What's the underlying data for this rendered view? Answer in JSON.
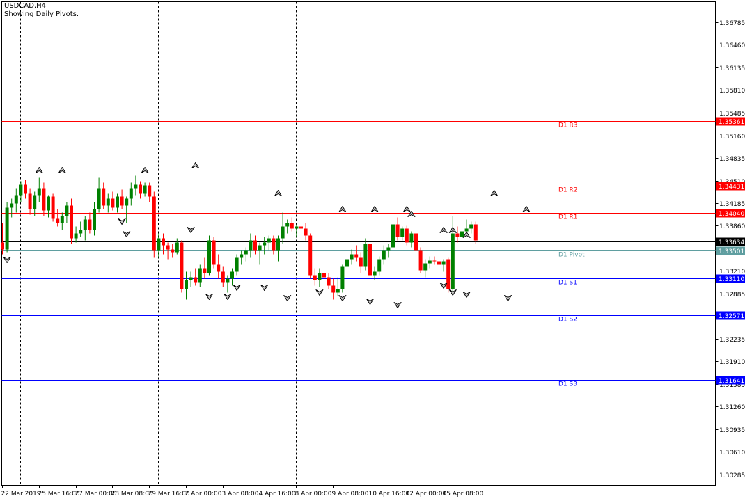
{
  "header": {
    "symbol_label": "USDCAD,H4",
    "indicator_label": "Showing Daily Pivots."
  },
  "colors": {
    "bull": "#008000",
    "bear": "#ff0000",
    "resistance": "#ff0000",
    "support": "#0000ff",
    "pivot": "#5f9ea0",
    "current_price": "#000000",
    "grid": "#000000",
    "background": "#ffffff"
  },
  "chart_data": {
    "type": "candlestick",
    "title": "USDCAD,H4",
    "subtitle": "Showing Daily Pivots.",
    "ylim": [
      1.3013,
      1.3708
    ],
    "y_ticks": [
      "1.36785",
      "1.36460",
      "1.36135",
      "1.35810",
      "1.35485",
      "1.35160",
      "1.34835",
      "1.34510",
      "1.34185",
      "1.33860",
      "1.33535",
      "1.33210",
      "1.32885",
      "1.32560",
      "1.32235",
      "1.31910",
      "1.31585",
      "1.31260",
      "1.30935",
      "1.30610",
      "1.30285"
    ],
    "x_tick_labels": [
      "22 Mar 2019",
      "25 Mar 16:00",
      "27 Mar 00:00",
      "28 Mar 08:00",
      "29 Mar 16:00",
      "2 Apr 00:00",
      "3 Apr 08:00",
      "4 Apr 16:00",
      "8 Apr 00:00",
      "9 Apr 08:00",
      "10 Apr 16:00",
      "12 Apr 00:00",
      "15 Apr 08:00"
    ],
    "x_tick_bar_index": [
      0,
      8,
      16,
      24,
      32,
      40,
      48,
      56,
      64,
      72,
      80,
      88,
      96
    ],
    "day_separator_bar_index": [
      4,
      34,
      64,
      94
    ],
    "pivot_levels": [
      {
        "label": "D1 R3",
        "value": 1.35361,
        "value_text": "1.35361",
        "kind": "resistance"
      },
      {
        "label": "D1 R2",
        "value": 1.34431,
        "value_text": "1.34431",
        "kind": "resistance"
      },
      {
        "label": "D1 R1",
        "value": 1.3404,
        "value_text": "1.34040",
        "kind": "resistance"
      },
      {
        "label": "D1 Pivot",
        "value": 1.33501,
        "value_text": "1.33501",
        "kind": "pivot"
      },
      {
        "label": "D1 S1",
        "value": 1.3311,
        "value_text": "1.33110",
        "kind": "support"
      },
      {
        "label": "D1 S2",
        "value": 1.32571,
        "value_text": "1.32571",
        "kind": "support"
      },
      {
        "label": "D1 S3",
        "value": 1.31641,
        "value_text": "1.31641",
        "kind": "support"
      }
    ],
    "current_price": {
      "value": 1.33634,
      "value_text": "1.33634"
    },
    "ohlc": [
      [
        1.3362,
        1.339,
        1.3345,
        1.3352
      ],
      [
        1.3352,
        1.342,
        1.3348,
        1.3412
      ],
      [
        1.3412,
        1.3425,
        1.3398,
        1.3418
      ],
      [
        1.3418,
        1.344,
        1.3405,
        1.343
      ],
      [
        1.343,
        1.345,
        1.342,
        1.3445
      ],
      [
        1.3445,
        1.3452,
        1.3425,
        1.3432
      ],
      [
        1.3432,
        1.344,
        1.3402,
        1.341
      ],
      [
        1.341,
        1.3435,
        1.34,
        1.343
      ],
      [
        1.343,
        1.3455,
        1.342,
        1.344
      ],
      [
        1.344,
        1.3448,
        1.34,
        1.3408
      ],
      [
        1.3408,
        1.343,
        1.3398,
        1.3428
      ],
      [
        1.3428,
        1.3432,
        1.3392,
        1.3396
      ],
      [
        1.3396,
        1.341,
        1.3385,
        1.339
      ],
      [
        1.339,
        1.3405,
        1.338,
        1.34
      ],
      [
        1.34,
        1.342,
        1.339,
        1.3415
      ],
      [
        1.3415,
        1.3425,
        1.336,
        1.3368
      ],
      [
        1.3368,
        1.3385,
        1.3362,
        1.3375
      ],
      [
        1.3375,
        1.3392,
        1.337,
        1.338
      ],
      [
        1.338,
        1.34,
        1.3365,
        1.3395
      ],
      [
        1.3395,
        1.3405,
        1.3375,
        1.338
      ],
      [
        1.338,
        1.342,
        1.3372,
        1.341
      ],
      [
        1.341,
        1.3455,
        1.3405,
        1.344
      ],
      [
        1.344,
        1.3448,
        1.341,
        1.3415
      ],
      [
        1.3415,
        1.3432,
        1.3405,
        1.3425
      ],
      [
        1.3425,
        1.3435,
        1.3408,
        1.3412
      ],
      [
        1.3412,
        1.3432,
        1.3405,
        1.3428
      ],
      [
        1.3428,
        1.3438,
        1.341,
        1.3415
      ],
      [
        1.3415,
        1.3428,
        1.339,
        1.3425
      ],
      [
        1.3425,
        1.3448,
        1.3415,
        1.344
      ],
      [
        1.344,
        1.3458,
        1.343,
        1.3445
      ],
      [
        1.3445,
        1.345,
        1.3425,
        1.3432
      ],
      [
        1.3432,
        1.3448,
        1.3428,
        1.3444
      ],
      [
        1.3444,
        1.3448,
        1.342,
        1.3428
      ],
      [
        1.3428,
        1.3435,
        1.334,
        1.335
      ],
      [
        1.335,
        1.3375,
        1.334,
        1.3368
      ],
      [
        1.3368,
        1.3375,
        1.3345,
        1.3358
      ],
      [
        1.3358,
        1.3362,
        1.3338,
        1.3352
      ],
      [
        1.3352,
        1.336,
        1.334,
        1.3348
      ],
      [
        1.3348,
        1.3368,
        1.3345,
        1.3362
      ],
      [
        1.3362,
        1.3365,
        1.329,
        1.3295
      ],
      [
        1.3295,
        1.332,
        1.328,
        1.3308
      ],
      [
        1.3308,
        1.332,
        1.3298,
        1.3312
      ],
      [
        1.3312,
        1.3325,
        1.33,
        1.3305
      ],
      [
        1.3305,
        1.333,
        1.3298,
        1.3325
      ],
      [
        1.3325,
        1.334,
        1.331,
        1.3318
      ],
      [
        1.3318,
        1.3372,
        1.3315,
        1.3365
      ],
      [
        1.3365,
        1.337,
        1.3325,
        1.333
      ],
      [
        1.333,
        1.3345,
        1.331,
        1.332
      ],
      [
        1.332,
        1.3328,
        1.3298,
        1.3305
      ],
      [
        1.3305,
        1.3315,
        1.329,
        1.331
      ],
      [
        1.331,
        1.3325,
        1.33,
        1.332
      ],
      [
        1.332,
        1.3345,
        1.3315,
        1.334
      ],
      [
        1.334,
        1.335,
        1.333,
        1.3345
      ],
      [
        1.3345,
        1.3355,
        1.3335,
        1.335
      ],
      [
        1.335,
        1.3375,
        1.334,
        1.3365
      ],
      [
        1.3365,
        1.3372,
        1.3345,
        1.335
      ],
      [
        1.335,
        1.3362,
        1.333,
        1.3358
      ],
      [
        1.3358,
        1.337,
        1.3345,
        1.3362
      ],
      [
        1.3362,
        1.3372,
        1.335,
        1.3368
      ],
      [
        1.3368,
        1.3372,
        1.3345,
        1.335
      ],
      [
        1.335,
        1.3372,
        1.3335,
        1.3368
      ],
      [
        1.3368,
        1.3405,
        1.336,
        1.3385
      ],
      [
        1.3385,
        1.3395,
        1.3375,
        1.339
      ],
      [
        1.339,
        1.3398,
        1.3378,
        1.3382
      ],
      [
        1.3382,
        1.3388,
        1.337,
        1.3385
      ],
      [
        1.3385,
        1.3388,
        1.3375,
        1.3382
      ],
      [
        1.3382,
        1.339,
        1.3365,
        1.3372
      ],
      [
        1.3372,
        1.3375,
        1.331,
        1.3315
      ],
      [
        1.3315,
        1.3325,
        1.33,
        1.3308
      ],
      [
        1.3308,
        1.3325,
        1.3298,
        1.3318
      ],
      [
        1.3318,
        1.3325,
        1.3308,
        1.3312
      ],
      [
        1.3312,
        1.3318,
        1.3295,
        1.33
      ],
      [
        1.33,
        1.331,
        1.328,
        1.329
      ],
      [
        1.329,
        1.3312,
        1.3285,
        1.3295
      ],
      [
        1.3295,
        1.333,
        1.329,
        1.3328
      ],
      [
        1.3328,
        1.3345,
        1.3322,
        1.3338
      ],
      [
        1.3338,
        1.3352,
        1.333,
        1.3345
      ],
      [
        1.3345,
        1.3358,
        1.3335,
        1.334
      ],
      [
        1.334,
        1.3348,
        1.3318,
        1.3328
      ],
      [
        1.3328,
        1.3368,
        1.3322,
        1.336
      ],
      [
        1.336,
        1.3365,
        1.331,
        1.3315
      ],
      [
        1.3315,
        1.3328,
        1.3308,
        1.332
      ],
      [
        1.332,
        1.3342,
        1.3315,
        1.3338
      ],
      [
        1.3338,
        1.3358,
        1.333,
        1.335
      ],
      [
        1.335,
        1.336,
        1.334,
        1.3355
      ],
      [
        1.3355,
        1.3392,
        1.335,
        1.3388
      ],
      [
        1.3388,
        1.3398,
        1.3365,
        1.337
      ],
      [
        1.337,
        1.3385,
        1.3365,
        1.3382
      ],
      [
        1.3382,
        1.3386,
        1.3358,
        1.3362
      ],
      [
        1.3362,
        1.3378,
        1.3355,
        1.3375
      ],
      [
        1.3375,
        1.3378,
        1.3345,
        1.335
      ],
      [
        1.335,
        1.3355,
        1.3318,
        1.3322
      ],
      [
        1.3322,
        1.3338,
        1.3312,
        1.3332
      ],
      [
        1.3332,
        1.3342,
        1.3325,
        1.3336
      ],
      [
        1.3336,
        1.3342,
        1.333,
        1.3335
      ],
      [
        1.3335,
        1.3345,
        1.3325,
        1.333
      ],
      [
        1.333,
        1.3338,
        1.332,
        1.3335
      ],
      [
        1.3338,
        1.334,
        1.329,
        1.3295
      ],
      [
        1.3295,
        1.34,
        1.329,
        1.3375
      ],
      [
        1.3375,
        1.3385,
        1.3362,
        1.337
      ],
      [
        1.337,
        1.3385,
        1.3365,
        1.3378
      ],
      [
        1.3378,
        1.3395,
        1.3372,
        1.3382
      ],
      [
        1.3382,
        1.3392,
        1.3375,
        1.3388
      ],
      [
        1.3388,
        1.3392,
        1.336,
        1.3365
      ]
    ],
    "fractals_up": [
      [
        8,
        1.3458
      ],
      [
        13,
        1.3458
      ],
      [
        31,
        1.3458
      ],
      [
        42,
        1.3465
      ],
      [
        60,
        1.3425
      ],
      [
        74,
        1.3402
      ],
      [
        81,
        1.3402
      ],
      [
        88,
        1.3402
      ],
      [
        89,
        1.3395
      ],
      [
        96,
        1.3372
      ],
      [
        98,
        1.3372
      ],
      [
        101,
        1.3365
      ],
      [
        107,
        1.3425
      ],
      [
        114,
        1.3402
      ]
    ],
    "fractals_down": [
      [
        1,
        1.3345
      ],
      [
        26,
        1.34
      ],
      [
        27,
        1.3382
      ],
      [
        41,
        1.3388
      ],
      [
        45,
        1.3292
      ],
      [
        49,
        1.3292
      ],
      [
        51,
        1.3305
      ],
      [
        57,
        1.3305
      ],
      [
        62,
        1.329
      ],
      [
        69,
        1.3298
      ],
      [
        74,
        1.329
      ],
      [
        80,
        1.3285
      ],
      [
        86,
        1.328
      ],
      [
        96,
        1.3308
      ],
      [
        98,
        1.3298
      ],
      [
        101,
        1.3295
      ],
      [
        110,
        1.329
      ]
    ]
  }
}
